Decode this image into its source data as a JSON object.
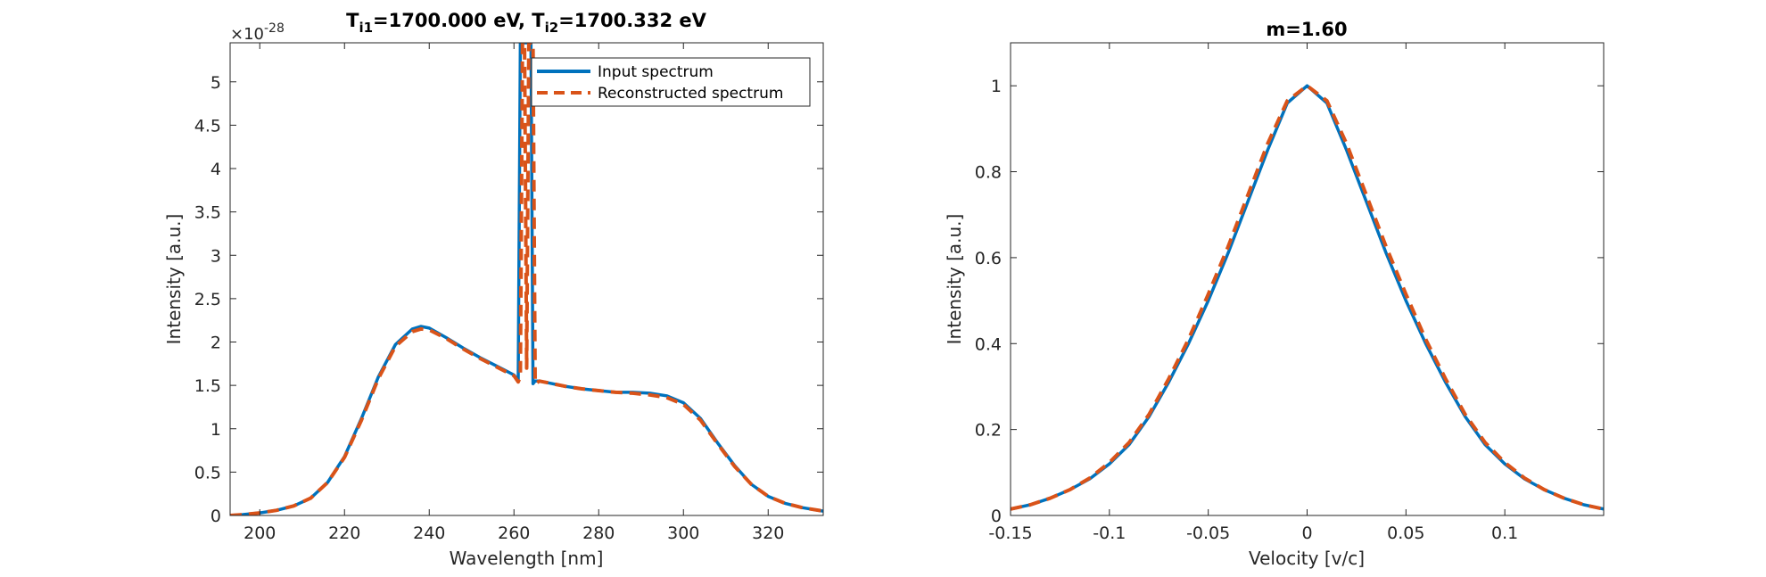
{
  "colors": {
    "input": "#0072BD",
    "reconstructed": "#D95319",
    "axis": "#262626"
  },
  "chart_data": [
    {
      "type": "line",
      "title": {
        "main_a": "T",
        "sub_a": "i1",
        "mid": "=1700.000 eV, T",
        "sub_b": "i2",
        "tail": "=1700.332 eV"
      },
      "xlabel": "Wavelength [nm]",
      "ylabel": "Intensity [a.u.]",
      "y_exponent_base": "×10",
      "y_exponent": "-28",
      "xlim": [
        193,
        333
      ],
      "ylim": [
        0,
        5.45
      ],
      "xticks": [
        200,
        220,
        240,
        260,
        280,
        300,
        320
      ],
      "xtick_labels": [
        "200",
        "220",
        "240",
        "260",
        "280",
        "300",
        "320"
      ],
      "yticks": [
        0,
        0.5,
        1,
        1.5,
        2,
        2.5,
        3,
        3.5,
        4,
        4.5,
        5
      ],
      "ytick_labels": [
        "0",
        "0.5",
        "1",
        "1.5",
        "2",
        "2.5",
        "3",
        "3.5",
        "4",
        "4.5",
        "5"
      ],
      "grid": false,
      "legend": {
        "placement": "top-right",
        "entries": [
          "Input spectrum",
          "Reconstructed spectrum"
        ]
      },
      "series": [
        {
          "name": "Input spectrum",
          "style": "solid",
          "x": [
            193,
            196,
            200,
            204,
            208,
            212,
            216,
            220,
            224,
            228,
            232,
            236,
            238,
            240,
            244,
            248,
            252,
            256,
            258,
            260,
            261,
            261.5,
            262,
            262.5,
            263,
            263.5,
            264,
            264.5,
            265,
            266,
            268,
            272,
            276,
            280,
            284,
            288,
            292,
            296,
            300,
            304,
            308,
            312,
            316,
            320,
            324,
            328,
            333
          ],
          "y": [
            0.0,
            0.01,
            0.03,
            0.06,
            0.11,
            0.2,
            0.38,
            0.68,
            1.12,
            1.6,
            1.97,
            2.15,
            2.18,
            2.16,
            2.05,
            1.93,
            1.82,
            1.72,
            1.67,
            1.62,
            1.55,
            5.45,
            5.45,
            5.45,
            5.45,
            5.45,
            5.45,
            1.52,
            1.55,
            1.55,
            1.53,
            1.49,
            1.46,
            1.44,
            1.42,
            1.42,
            1.41,
            1.38,
            1.3,
            1.12,
            0.84,
            0.58,
            0.36,
            0.22,
            0.14,
            0.09,
            0.05
          ]
        },
        {
          "name": "Reconstructed spectrum",
          "style": "dashed",
          "x": [
            193,
            196,
            200,
            204,
            208,
            212,
            216,
            220,
            224,
            228,
            232,
            236,
            238,
            240,
            244,
            248,
            252,
            256,
            258,
            260,
            261,
            261.5,
            262,
            262.5,
            263,
            263.5,
            264,
            264.5,
            265,
            266,
            268,
            272,
            276,
            280,
            284,
            288,
            292,
            296,
            300,
            304,
            308,
            312,
            316,
            320,
            324,
            328,
            333
          ],
          "y": [
            0.0,
            0.01,
            0.03,
            0.06,
            0.11,
            0.2,
            0.38,
            0.67,
            1.1,
            1.58,
            1.95,
            2.12,
            2.15,
            2.14,
            2.04,
            1.92,
            1.81,
            1.71,
            1.66,
            1.61,
            1.54,
            1.6,
            5.45,
            5.45,
            1.7,
            5.45,
            5.45,
            5.45,
            1.52,
            1.55,
            1.53,
            1.49,
            1.46,
            1.44,
            1.42,
            1.41,
            1.39,
            1.36,
            1.28,
            1.1,
            0.83,
            0.57,
            0.36,
            0.22,
            0.14,
            0.09,
            0.05
          ]
        }
      ]
    },
    {
      "type": "line",
      "title": "m=1.60",
      "xlabel": "Velocity [v/c]",
      "ylabel": "Intensity [a.u.]",
      "xlim": [
        -0.15,
        0.15
      ],
      "ylim": [
        0,
        1.1
      ],
      "xticks": [
        -0.15,
        -0.1,
        -0.05,
        0,
        0.05,
        0.1
      ],
      "xtick_labels": [
        "-0.15",
        "-0.1",
        "-0.05",
        "0",
        "0.05",
        "0.1"
      ],
      "yticks": [
        0,
        0.2,
        0.4,
        0.6,
        0.8,
        1
      ],
      "ytick_labels": [
        "0",
        "0.2",
        "0.4",
        "0.6",
        "0.8",
        "1"
      ],
      "grid": false,
      "series": [
        {
          "name": "Input spectrum",
          "style": "solid",
          "x": [
            -0.15,
            -0.14,
            -0.13,
            -0.12,
            -0.11,
            -0.1,
            -0.09,
            -0.08,
            -0.07,
            -0.06,
            -0.05,
            -0.04,
            -0.03,
            -0.02,
            -0.01,
            0,
            0.01,
            0.02,
            0.03,
            0.04,
            0.05,
            0.06,
            0.07,
            0.08,
            0.09,
            0.1,
            0.11,
            0.12,
            0.13,
            0.14,
            0.15
          ],
          "y": [
            0.015,
            0.025,
            0.04,
            0.06,
            0.085,
            0.12,
            0.165,
            0.23,
            0.31,
            0.4,
            0.5,
            0.61,
            0.73,
            0.85,
            0.96,
            1.0,
            0.96,
            0.85,
            0.73,
            0.61,
            0.5,
            0.4,
            0.31,
            0.23,
            0.165,
            0.12,
            0.085,
            0.06,
            0.04,
            0.025,
            0.015
          ]
        },
        {
          "name": "Reconstructed spectrum",
          "style": "dashed",
          "x": [
            -0.15,
            -0.14,
            -0.13,
            -0.12,
            -0.11,
            -0.1,
            -0.09,
            -0.08,
            -0.07,
            -0.06,
            -0.05,
            -0.04,
            -0.03,
            -0.02,
            -0.01,
            0,
            0.01,
            0.02,
            0.03,
            0.04,
            0.05,
            0.06,
            0.07,
            0.08,
            0.09,
            0.1,
            0.11,
            0.12,
            0.13,
            0.14,
            0.15
          ],
          "y": [
            0.015,
            0.025,
            0.04,
            0.06,
            0.087,
            0.123,
            0.17,
            0.235,
            0.318,
            0.41,
            0.515,
            0.625,
            0.745,
            0.865,
            0.965,
            1.0,
            0.965,
            0.865,
            0.745,
            0.625,
            0.515,
            0.41,
            0.318,
            0.235,
            0.17,
            0.123,
            0.087,
            0.06,
            0.04,
            0.025,
            0.015
          ]
        }
      ]
    }
  ]
}
